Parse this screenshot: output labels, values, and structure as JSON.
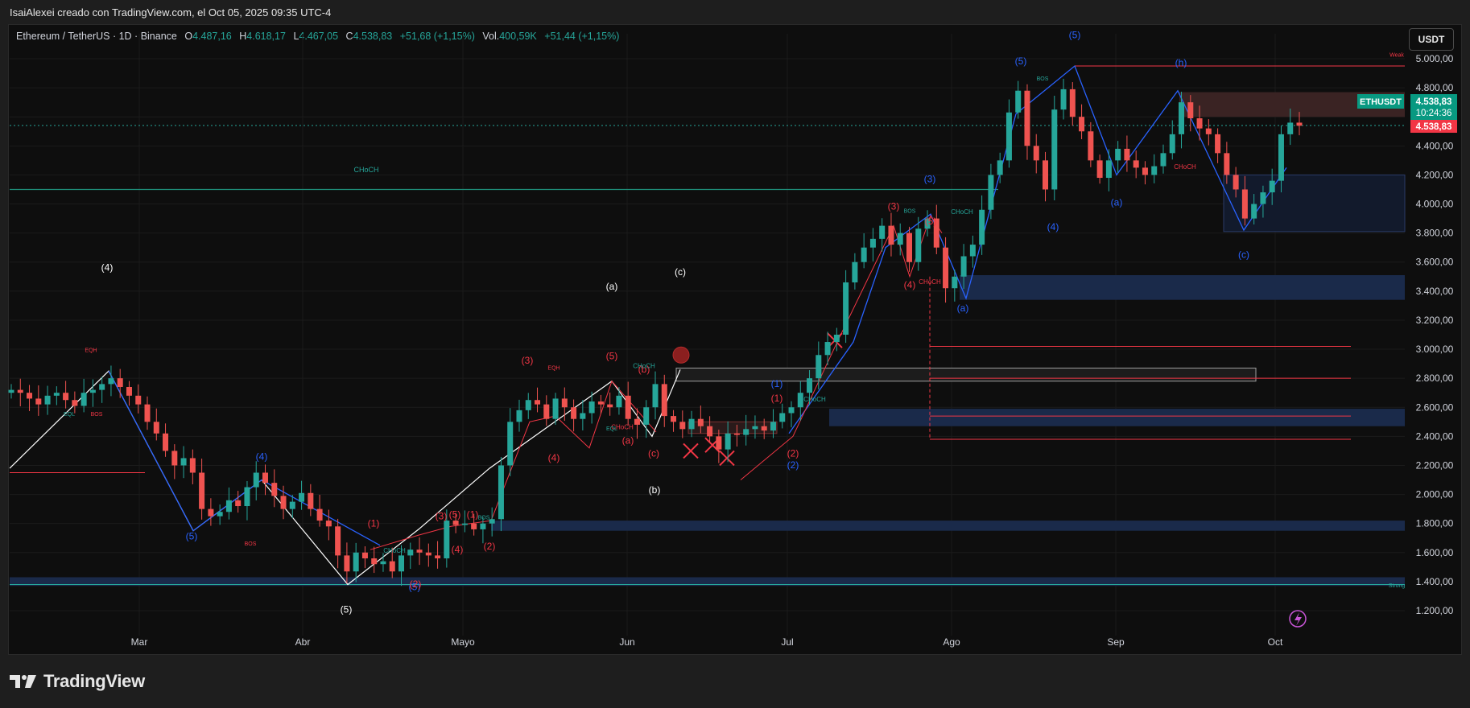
{
  "header": {
    "caption": "IsaiAlexei creado con TradingView.com, el Oct 05, 2025 09:35 UTC-4"
  },
  "legend": {
    "symbol": "Ethereum / TetherUS · 1D · Binance",
    "open_label": "O",
    "open": "4.487,16",
    "high_label": "H",
    "high": "4.618,17",
    "low_label": "L",
    "low": "4.467,05",
    "close_label": "C",
    "close": "4.538,83",
    "change": "+51,68 (+1,15%)",
    "vol_label": "Vol.",
    "vol": "400,59K",
    "vol_change": "+51,44 (+1,15%)"
  },
  "currency_button": "USDT",
  "price_tags": {
    "symbol": "ETHUSDT",
    "price": "4.538,83",
    "countdown": "10:24:36",
    "last": "4.538,83"
  },
  "footer": {
    "logo_text": "TradingView"
  },
  "colors": {
    "up": "#26a69a",
    "down": "#ef5350",
    "wave_blue": "#2962ff",
    "wave_red": "#f23645",
    "zone_blue": "#1a2a4a",
    "choch": "#26a69a",
    "background": "#0e0e0e"
  },
  "chart_data": {
    "type": "candlestick",
    "title": "Ethereum / TetherUS · 1D · Binance",
    "y_ticks": [
      "5.000,00",
      "4.800,00",
      "4.600,00",
      "4.400,00",
      "4.200,00",
      "4.000,00",
      "3.800,00",
      "3.600,00",
      "3.400,00",
      "3.200,00",
      "3.000,00",
      "2.800,00",
      "2.600,00",
      "2.400,00",
      "2.200,00",
      "2.000,00",
      "1.800,00",
      "1.600,00",
      "1.400,00",
      "1.200,00"
    ],
    "y_values": [
      5000,
      4800,
      4600,
      4400,
      4200,
      4000,
      3800,
      3600,
      3400,
      3200,
      3000,
      2800,
      2600,
      2400,
      2200,
      2000,
      1800,
      1600,
      1400,
      1200
    ],
    "x_ticks": [
      "Mar",
      "Abr",
      "Mayo",
      "Jun",
      "Jul",
      "Ago",
      "Sep",
      "Oct"
    ],
    "ylim": [
      1100,
      5150
    ],
    "close_series": [
      2720,
      2700,
      2660,
      2620,
      2680,
      2700,
      2650,
      2610,
      2700,
      2720,
      2760,
      2800,
      2740,
      2680,
      2620,
      2500,
      2420,
      2300,
      2200,
      2250,
      2150,
      1900,
      1850,
      1880,
      1960,
      1920,
      2050,
      2150,
      2080,
      1990,
      1900,
      1950,
      2010,
      1900,
      1820,
      1780,
      1580,
      1470,
      1600,
      1560,
      1520,
      1540,
      1470,
      1580,
      1620,
      1600,
      1580,
      1560,
      1820,
      1790,
      1800,
      1760,
      1800,
      1830,
      2200,
      2500,
      2580,
      2650,
      2620,
      2520,
      2660,
      2600,
      2520,
      2560,
      2640,
      2620,
      2600,
      2680,
      2520,
      2480,
      2600,
      2760,
      2540,
      2500,
      2450,
      2520,
      2470,
      2400,
      2310,
      2420,
      2410,
      2450,
      2470,
      2440,
      2500,
      2560,
      2600,
      2700,
      2800,
      2960,
      3050,
      3100,
      3460,
      3600,
      3700,
      3760,
      3850,
      3720,
      3800,
      3600,
      3830,
      3900,
      3700,
      3420,
      3500,
      3640,
      3720,
      3960,
      4200,
      4300,
      4630,
      4780,
      4400,
      4300,
      4100,
      4650,
      4790,
      4600,
      4500,
      4300,
      4180,
      4300,
      4380,
      4300,
      4250,
      4200,
      4260,
      4350,
      4480,
      4700,
      4590,
      4520,
      4480,
      4350,
      4200,
      4100,
      3900,
      4000,
      4080,
      4160,
      4480,
      4560,
      4538.83
    ],
    "labels": {
      "choch": "CHoCH",
      "bos": "BOS",
      "eqh": "EQH",
      "eql": "EQL",
      "weak": "Weak",
      "strong": "Strong",
      "waves_white": [
        "(4)",
        "(a)",
        "(c)",
        "(b)",
        "(5)"
      ],
      "waves_blue": [
        "(5)",
        "(5)",
        "(h)",
        "(a)",
        "(4)",
        "(3)",
        "(1)",
        "(2)",
        "(5)",
        "(4)",
        "(5)",
        "(c)",
        "(a)"
      ],
      "waves_red": [
        "(3)",
        "(5)",
        "(4)",
        "(1)",
        "(2)",
        "(3)",
        "(5)",
        "(1)",
        "(4)",
        "(2)",
        "(a)",
        "(b)",
        "(c)",
        "(3)",
        "(5)",
        "(4)",
        "(1)",
        "(2)"
      ]
    }
  }
}
